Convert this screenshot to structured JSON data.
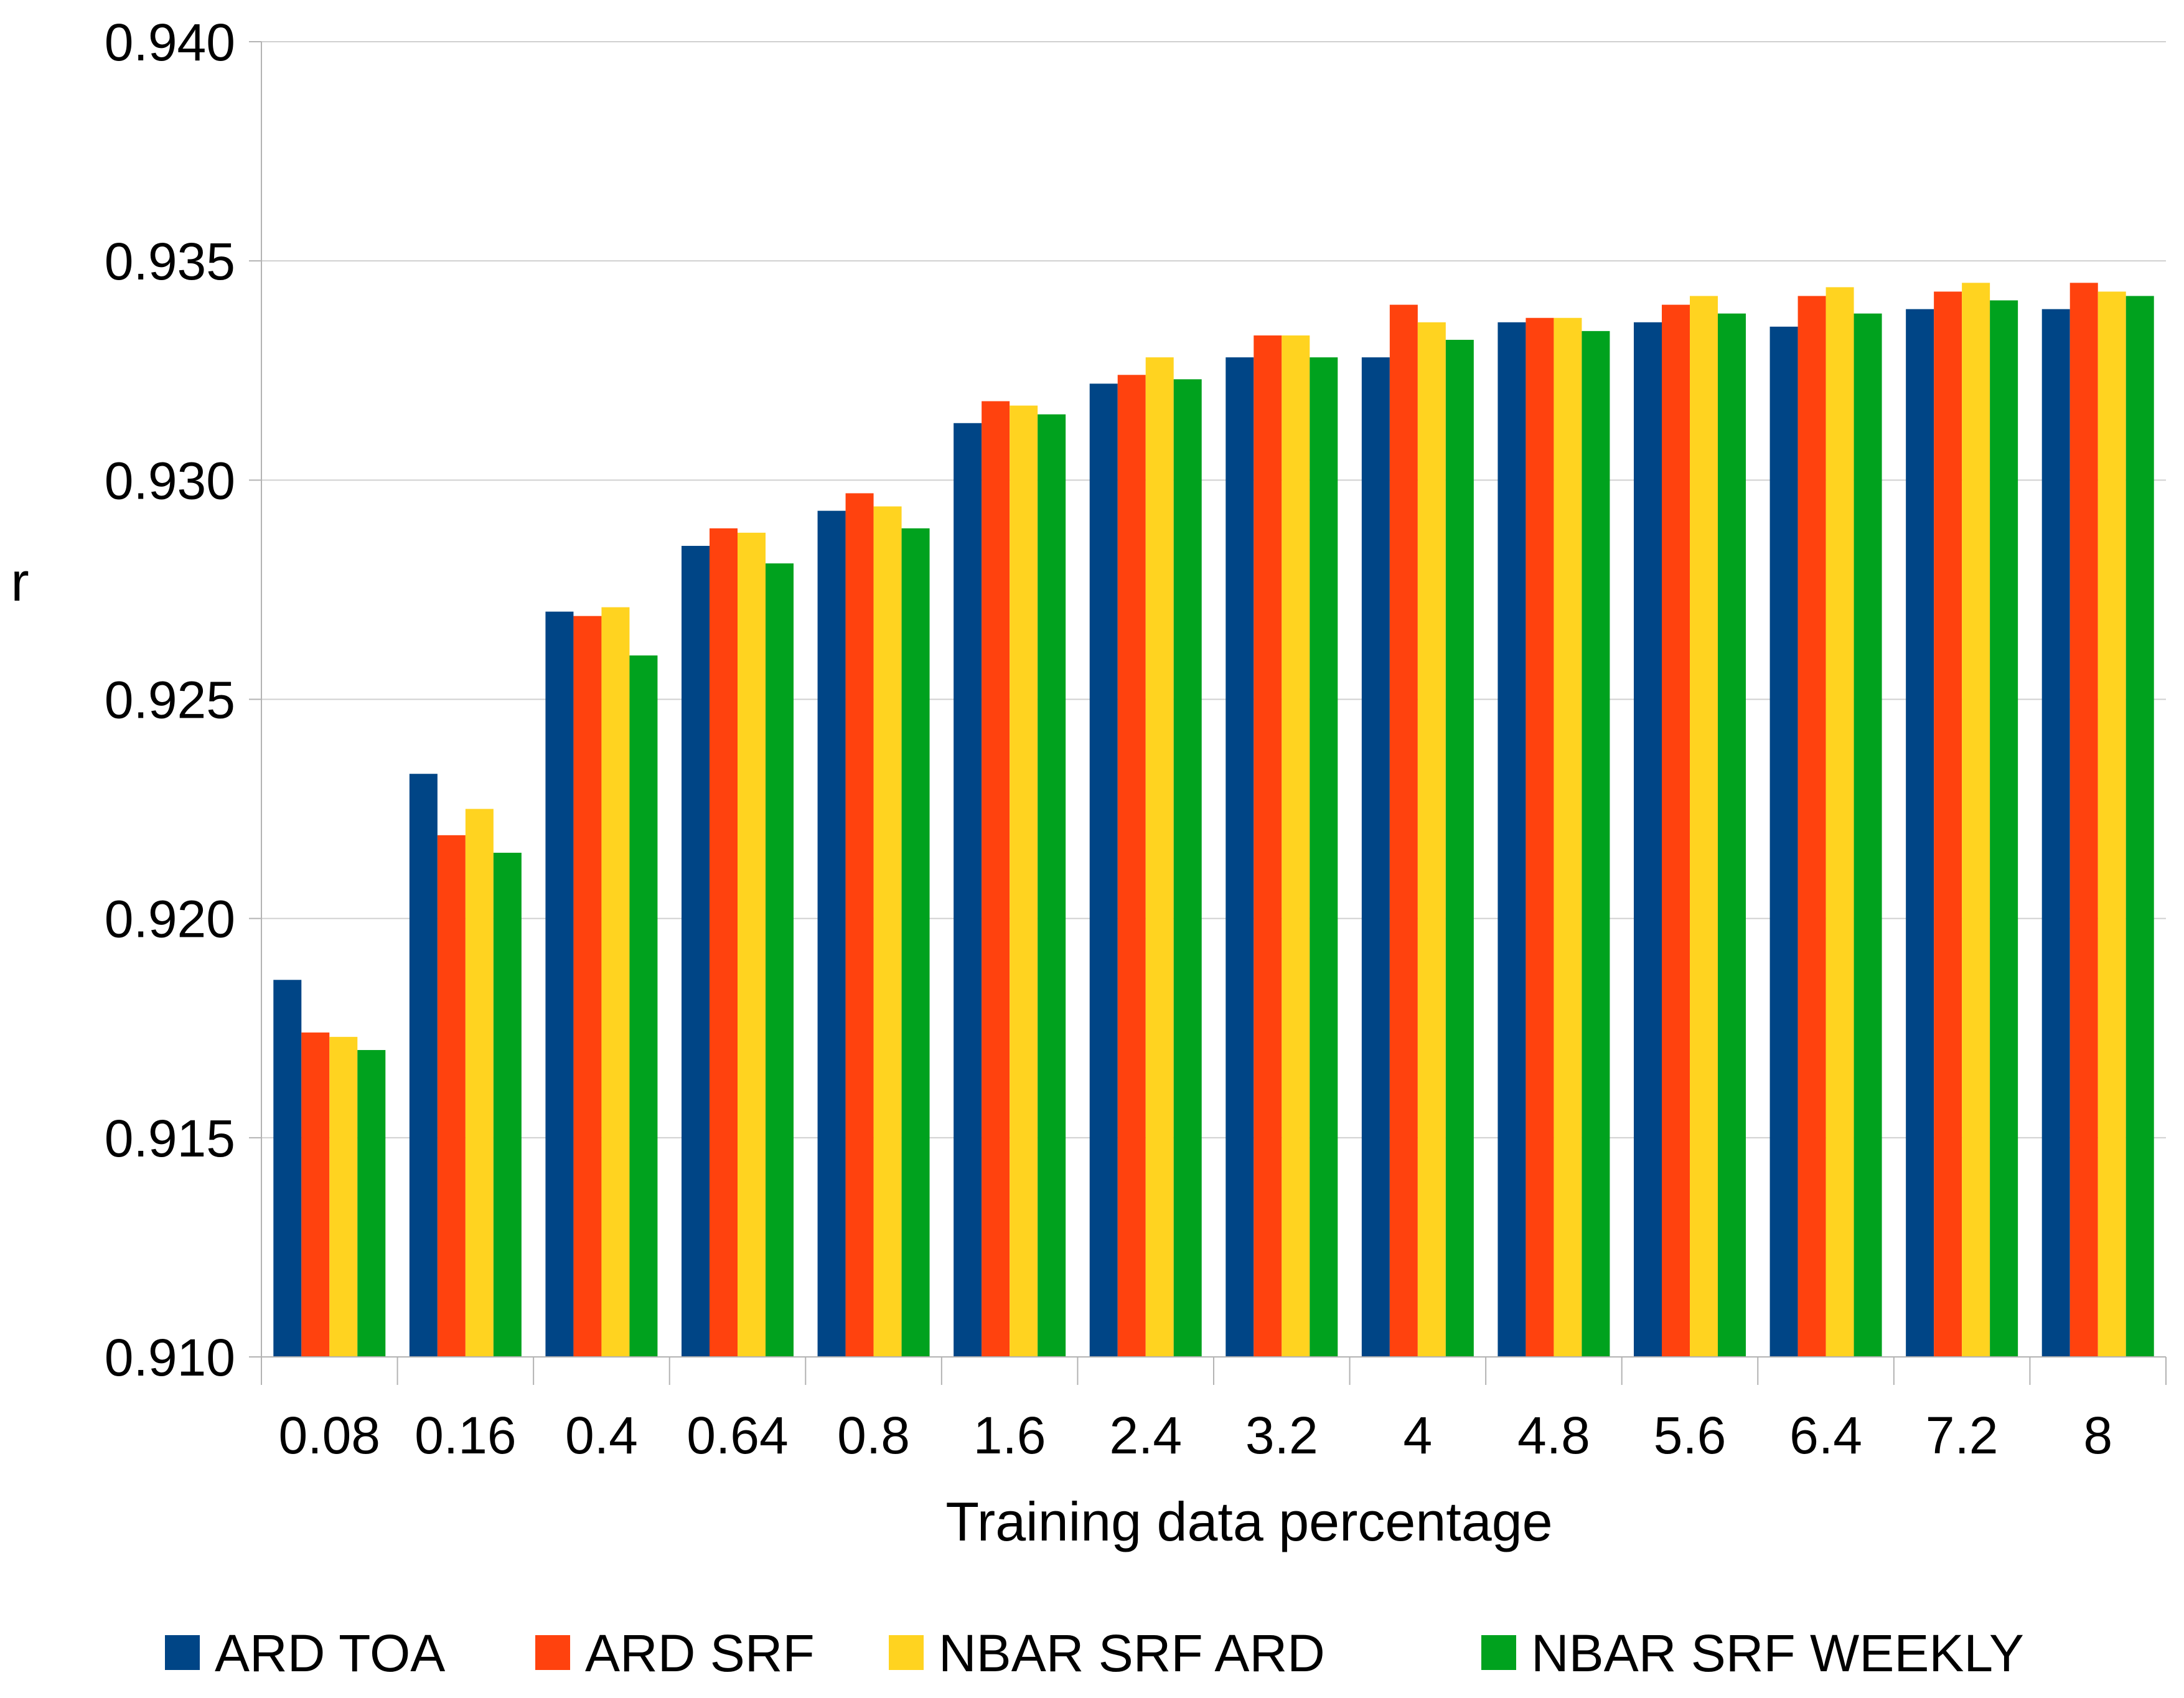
{
  "chart_data": {
    "type": "bar",
    "title": "",
    "xlabel": "Training data percentage",
    "ylabel": "r",
    "ylim": [
      0.91,
      0.94
    ],
    "yticks": [
      "0.910",
      "0.915",
      "0.920",
      "0.925",
      "0.930",
      "0.935",
      "0.940"
    ],
    "grid": "horizontal",
    "legend_position": "bottom",
    "categories": [
      "0.08",
      "0.16",
      "0.4",
      "0.64",
      "0.8",
      "1.6",
      "2.4",
      "3.2",
      "4",
      "4.8",
      "5.6",
      "6.4",
      "7.2",
      "8"
    ],
    "series": [
      {
        "name": "ARD TOA",
        "color": "#004586",
        "values": [
          0.9186,
          0.9233,
          0.927,
          0.9285,
          0.9293,
          0.9313,
          0.9322,
          0.9328,
          0.9328,
          0.9336,
          0.9336,
          0.9335,
          0.9339,
          0.9339
        ]
      },
      {
        "name": "ARD SRF",
        "color": "#ff420e",
        "values": [
          0.9174,
          0.9219,
          0.9269,
          0.9289,
          0.9297,
          0.9318,
          0.9324,
          0.9333,
          0.934,
          0.9337,
          0.934,
          0.9342,
          0.9343,
          0.9345
        ]
      },
      {
        "name": "NBAR SRF ARD",
        "color": "#ffd320",
        "values": [
          0.9173,
          0.9225,
          0.9271,
          0.9288,
          0.9294,
          0.9317,
          0.9328,
          0.9333,
          0.9336,
          0.9337,
          0.9342,
          0.9344,
          0.9345,
          0.9343
        ]
      },
      {
        "name": "NBAR SRF WEEKLY",
        "color": "#00a21e",
        "values": [
          0.917,
          0.9215,
          0.926,
          0.9281,
          0.9289,
          0.9315,
          0.9323,
          0.9328,
          0.9332,
          0.9334,
          0.9338,
          0.9338,
          0.9341,
          0.9342
        ]
      }
    ]
  }
}
